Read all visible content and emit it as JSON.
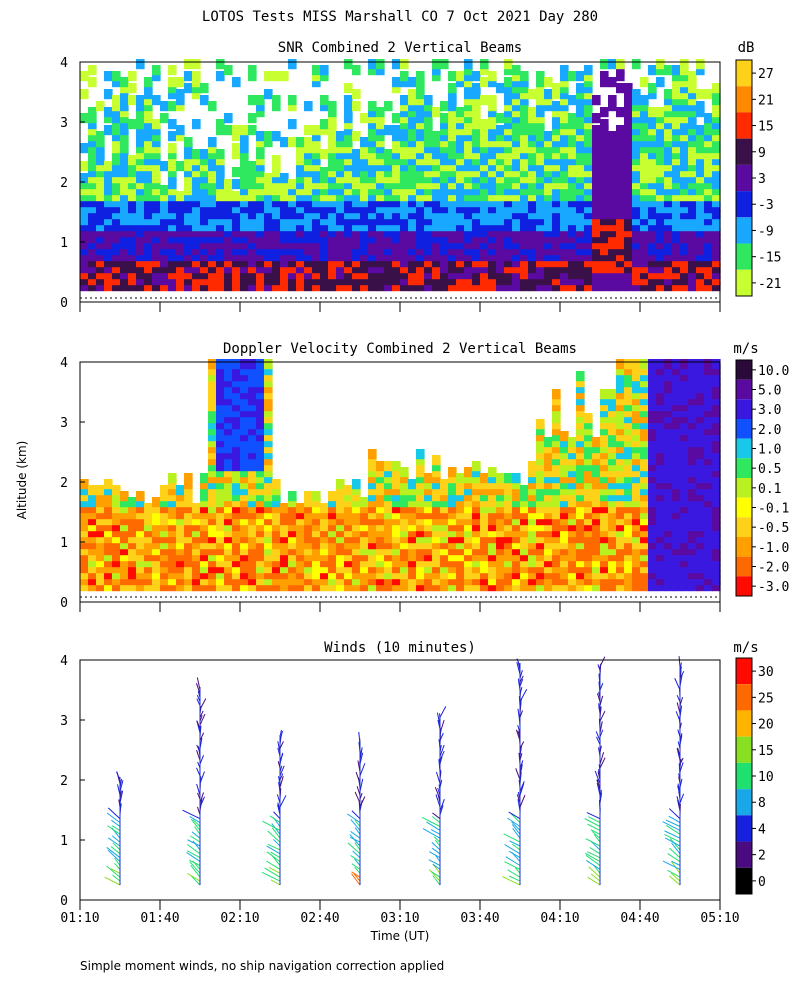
{
  "title": "LOTOS Tests MISS Marshall CO   7 Oct 2021 Day 280",
  "footnote": "Simple moment winds, no ship navigation correction applied",
  "chart_data": [
    {
      "type": "heatmap",
      "title": "SNR Combined 2 Vertical Beams",
      "ylabel": "Altitude (km)",
      "ylim": [
        0,
        4
      ],
      "yticks": [
        "0",
        "1",
        "2",
        "3",
        "4"
      ],
      "colorbar": {
        "unit": "dB",
        "labels": [
          "27",
          "21",
          "15",
          "9",
          "3",
          "-3",
          "-9",
          "-15",
          "-21"
        ],
        "colors": [
          "#ffd21a",
          "#ff8a00",
          "#ff2a00",
          "#3a1048",
          "#5a0aa0",
          "#1020e0",
          "#18a8ff",
          "#30e860",
          "#c8ff30"
        ]
      }
    },
    {
      "type": "heatmap",
      "title": "Doppler Velocity Combined 2 Vertical Beams",
      "ylabel": "Altitude (km)",
      "ylim": [
        0,
        4
      ],
      "yticks": [
        "0",
        "1",
        "2",
        "3",
        "4"
      ],
      "colorbar": {
        "unit": "m/s",
        "labels": [
          "10.0",
          "5.0",
          "3.0",
          "2.0",
          "1.0",
          "0.5",
          "0.1",
          "-0.1",
          "-0.5",
          "-1.0",
          "-2.0",
          "-3.0"
        ],
        "colors": [
          "#2a0a38",
          "#5a0aa0",
          "#3a18e0",
          "#1050ff",
          "#18c8e8",
          "#30e860",
          "#b8f020",
          "#ffff00",
          "#ffd21a",
          "#ffa000",
          "#ff6a00",
          "#ff0a00"
        ]
      }
    },
    {
      "type": "scatter",
      "title": "Winds (10 minutes)",
      "xlabel": "Time (UT)",
      "ylabel": "Altitude (km)",
      "ylim": [
        0,
        4
      ],
      "yticks": [
        "0",
        "1",
        "2",
        "3",
        "4"
      ],
      "xticks": [
        "01:10",
        "01:40",
        "02:10",
        "02:40",
        "03:10",
        "03:40",
        "04:10",
        "04:40",
        "05:10"
      ],
      "profile_times": [
        "01:25",
        "01:55",
        "02:25",
        "02:55",
        "03:25",
        "03:55",
        "04:25",
        "04:55"
      ],
      "profile_top_km": [
        2.05,
        3.55,
        2.75,
        2.65,
        3.05,
        3.95,
        3.9,
        3.9
      ],
      "colorbar": {
        "unit": "m/s",
        "labels": [
          "30",
          "25",
          "20",
          "15",
          "10",
          "8",
          "4",
          "2",
          "0"
        ],
        "colors": [
          "#ff0a00",
          "#ff6a00",
          "#ffb400",
          "#88e020",
          "#20e070",
          "#18a8e8",
          "#1820e0",
          "#4a0a80",
          "#000000"
        ]
      }
    }
  ]
}
